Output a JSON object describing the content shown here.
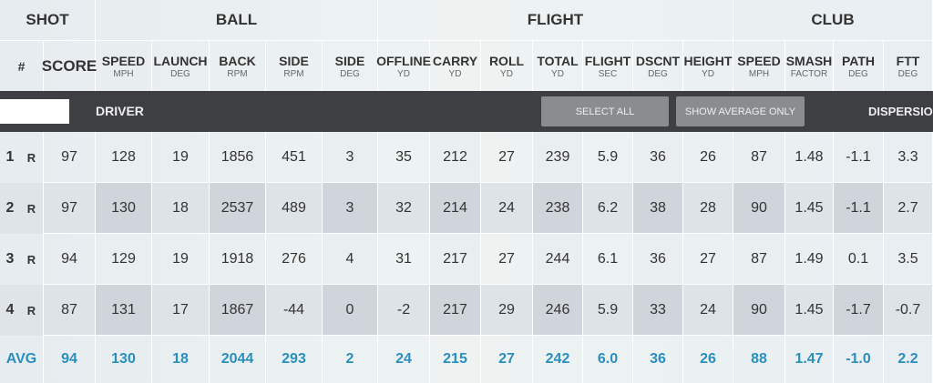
{
  "groups": [
    "SHOT",
    "BALL",
    "FLIGHT",
    "CLUB"
  ],
  "columns": [
    {
      "name": "#"
    },
    {
      "name": "SCORE"
    },
    {
      "name": "SPEED",
      "unit": "MPH"
    },
    {
      "name": "LAUNCH",
      "unit": "DEG"
    },
    {
      "name": "BACK",
      "unit": "RPM"
    },
    {
      "name": "SIDE",
      "unit": "RPM"
    },
    {
      "name": "SIDE",
      "unit": "DEG"
    },
    {
      "name": "OFFLINE",
      "unit": "YD"
    },
    {
      "name": "CARRY",
      "unit": "YD"
    },
    {
      "name": "ROLL",
      "unit": "YD"
    },
    {
      "name": "TOTAL",
      "unit": "YD"
    },
    {
      "name": "FLIGHT",
      "unit": "SEC"
    },
    {
      "name": "DSCNT",
      "unit": "DEG"
    },
    {
      "name": "HEIGHT",
      "unit": "YD"
    },
    {
      "name": "SPEED",
      "unit": "MPH"
    },
    {
      "name": "SMASH",
      "unit": "FACTOR"
    },
    {
      "name": "PATH",
      "unit": "DEG"
    },
    {
      "name": "FTT",
      "unit": "DEG"
    }
  ],
  "bar": {
    "club": "DRIVER",
    "buttons": [
      "SELECT ALL",
      "SHOW AVERAGE ONLY"
    ],
    "tab": "DISPERSION"
  },
  "rows": [
    {
      "num": "1",
      "hand": "R",
      "cells": [
        "97",
        "128",
        "19",
        "1856",
        "451",
        "3",
        "35",
        "212",
        "27",
        "239",
        "5.9",
        "36",
        "26",
        "87",
        "1.48",
        "-1.1",
        "3.3"
      ]
    },
    {
      "num": "2",
      "hand": "R",
      "cells": [
        "97",
        "130",
        "18",
        "2537",
        "489",
        "3",
        "32",
        "214",
        "24",
        "238",
        "6.2",
        "38",
        "28",
        "90",
        "1.45",
        "-1.1",
        "2.7"
      ]
    },
    {
      "num": "3",
      "hand": "R",
      "cells": [
        "94",
        "129",
        "19",
        "1918",
        "276",
        "4",
        "31",
        "217",
        "27",
        "244",
        "6.1",
        "36",
        "27",
        "87",
        "1.49",
        "0.1",
        "3.5"
      ]
    },
    {
      "num": "4",
      "hand": "R",
      "cells": [
        "87",
        "131",
        "17",
        "1867",
        "-44",
        "0",
        "-2",
        "217",
        "29",
        "246",
        "5.9",
        "33",
        "24",
        "90",
        "1.45",
        "-1.7",
        "-0.7"
      ]
    }
  ],
  "average": {
    "label": "AVG",
    "cells": [
      "94",
      "130",
      "18",
      "2044",
      "293",
      "2",
      "24",
      "215",
      "27",
      "242",
      "6.0",
      "36",
      "26",
      "88",
      "1.47",
      "-1.0",
      "2.2"
    ]
  }
}
